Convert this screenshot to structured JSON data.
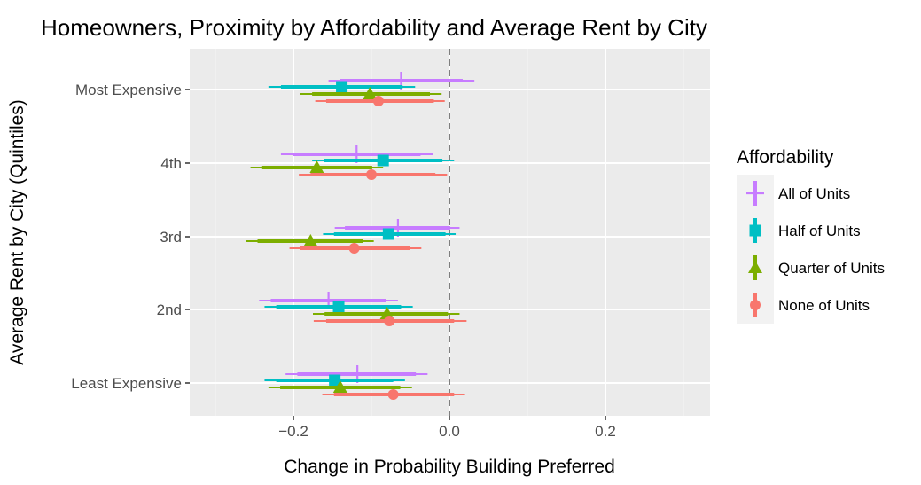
{
  "chart_data": {
    "type": "scatter",
    "title": "Homeowners, Proximity by Affordability and Average Rent by City",
    "xlabel": "Change in Probability Building Preferred",
    "ylabel": "Average Rent by City (Quintiles)",
    "xlim": [
      -0.33,
      0.33
    ],
    "x_ticks": [
      -0.2,
      0.0,
      0.2
    ],
    "x_tick_labels": [
      "−0.2",
      "0.0",
      "0.2"
    ],
    "categories": [
      "Most Expensive",
      "4th",
      "3rd",
      "2nd",
      "Least Expensive"
    ],
    "reference_line_x": 0.0,
    "grid": true,
    "legend": {
      "title": "Affordability",
      "placement": "right"
    },
    "series": [
      {
        "name": "All of Units",
        "color": "#C77CFF",
        "shape": "plus",
        "points": [
          {
            "category": "Most Expensive",
            "estimate": -0.062,
            "ci90": [
              -0.14,
              0.017
            ],
            "ci95": [
              -0.155,
              0.032
            ]
          },
          {
            "category": "4th",
            "estimate": -0.119,
            "ci90": [
              -0.2,
              -0.037
            ],
            "ci95": [
              -0.216,
              -0.021
            ]
          },
          {
            "category": "3rd",
            "estimate": -0.066,
            "ci90": [
              -0.134,
              0.001
            ],
            "ci95": [
              -0.147,
              0.013
            ]
          },
          {
            "category": "2nd",
            "estimate": -0.155,
            "ci90": [
              -0.229,
              -0.081
            ],
            "ci95": [
              -0.244,
              -0.066
            ]
          },
          {
            "category": "Least Expensive",
            "estimate": -0.118,
            "ci90": [
              -0.195,
              -0.043
            ],
            "ci95": [
              -0.21,
              -0.028
            ]
          }
        ]
      },
      {
        "name": "Half of Units",
        "color": "#00BFC4",
        "shape": "square",
        "points": [
          {
            "category": "Most Expensive",
            "estimate": -0.138,
            "ci90": [
              -0.216,
              -0.06
            ],
            "ci95": [
              -0.232,
              -0.044
            ]
          },
          {
            "category": "4th",
            "estimate": -0.085,
            "ci90": [
              -0.161,
              -0.009
            ],
            "ci95": [
              -0.176,
              0.006
            ]
          },
          {
            "category": "3rd",
            "estimate": -0.078,
            "ci90": [
              -0.148,
              -0.005
            ],
            "ci95": [
              -0.162,
              0.008
            ]
          },
          {
            "category": "2nd",
            "estimate": -0.142,
            "ci90": [
              -0.222,
              -0.062
            ],
            "ci95": [
              -0.237,
              -0.047
            ]
          },
          {
            "category": "Least Expensive",
            "estimate": -0.147,
            "ci90": [
              -0.222,
              -0.072
            ],
            "ci95": [
              -0.237,
              -0.057
            ]
          }
        ]
      },
      {
        "name": "Quarter of Units",
        "color": "#7CAE00",
        "shape": "triangle",
        "points": [
          {
            "category": "Most Expensive",
            "estimate": -0.102,
            "ci90": [
              -0.176,
              -0.025
            ],
            "ci95": [
              -0.191,
              -0.01
            ]
          },
          {
            "category": "4th",
            "estimate": -0.17,
            "ci90": [
              -0.24,
              -0.099
            ],
            "ci95": [
              -0.255,
              -0.085
            ]
          },
          {
            "category": "3rd",
            "estimate": -0.178,
            "ci90": [
              -0.246,
              -0.111
            ],
            "ci95": [
              -0.261,
              -0.097
            ]
          },
          {
            "category": "2nd",
            "estimate": -0.08,
            "ci90": [
              -0.16,
              -0.002
            ],
            "ci95": [
              -0.175,
              0.013
            ]
          },
          {
            "category": "Least Expensive",
            "estimate": -0.14,
            "ci90": [
              -0.217,
              -0.063
            ],
            "ci95": [
              -0.232,
              -0.048
            ]
          }
        ]
      },
      {
        "name": "None of Units",
        "color": "#F8766D",
        "shape": "circle",
        "points": [
          {
            "category": "Most Expensive",
            "estimate": -0.091,
            "ci90": [
              -0.158,
              -0.02
            ],
            "ci95": [
              -0.172,
              -0.006
            ]
          },
          {
            "category": "4th",
            "estimate": -0.1,
            "ci90": [
              -0.178,
              -0.018
            ],
            "ci95": [
              -0.193,
              -0.003
            ]
          },
          {
            "category": "3rd",
            "estimate": -0.122,
            "ci90": [
              -0.191,
              -0.05
            ],
            "ci95": [
              -0.205,
              -0.036
            ]
          },
          {
            "category": "2nd",
            "estimate": -0.077,
            "ci90": [
              -0.158,
              0.006
            ],
            "ci95": [
              -0.174,
              0.022
            ]
          },
          {
            "category": "Least Expensive",
            "estimate": -0.072,
            "ci90": [
              -0.148,
              0.006
            ],
            "ci95": [
              -0.163,
              0.02
            ]
          }
        ]
      }
    ]
  }
}
